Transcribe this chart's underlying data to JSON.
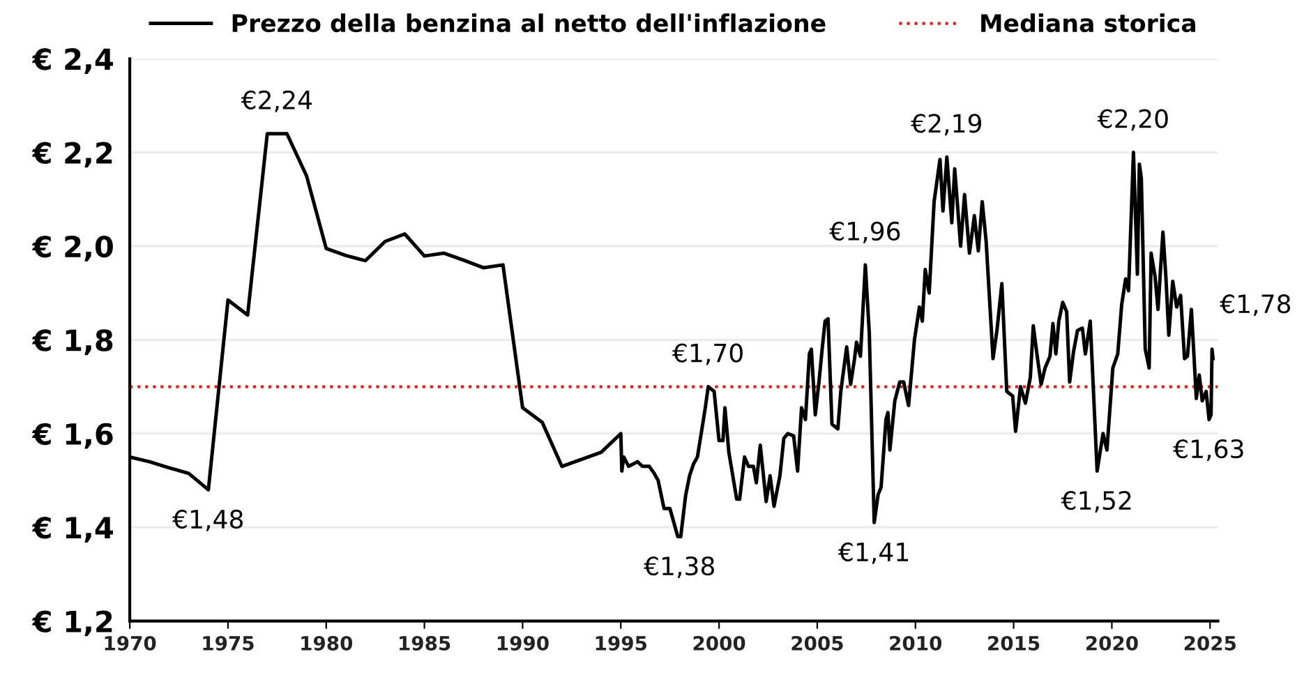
{
  "chart_data": {
    "type": "line",
    "x": [
      1970,
      1971,
      1972,
      1973,
      1974,
      1975,
      1976,
      1977,
      1978,
      1979,
      1980,
      1981,
      1982,
      1983,
      1984,
      1985,
      1986,
      1987,
      1988,
      1989,
      1990,
      1991,
      1992,
      1994,
      1995,
      1995.05,
      1995.15,
      1995.4,
      1995.85,
      1996.1,
      1996.45,
      1996.7,
      1996.9,
      1997.2,
      1997.5,
      1997.9,
      1998.05,
      1998.3,
      1998.5,
      1998.7,
      1998.9,
      1999.15,
      1999.3,
      1999.45,
      1999.75,
      2000.0,
      2000.2,
      2000.3,
      2000.5,
      2000.9,
      2001.05,
      2001.3,
      2001.5,
      2001.75,
      2001.9,
      2002.1,
      2002.4,
      2002.6,
      2002.8,
      2003.1,
      2003.3,
      2003.5,
      2003.8,
      2004.0,
      2004.2,
      2004.4,
      2004.6,
      2004.7,
      2004.9,
      2005.1,
      2005.25,
      2005.4,
      2005.55,
      2005.75,
      2006.05,
      2006.2,
      2006.5,
      2006.7,
      2006.9,
      2007.0,
      2007.2,
      2007.45,
      2007.65,
      2007.9,
      2008.1,
      2008.25,
      2008.5,
      2008.6,
      2008.7,
      2008.95,
      2009.2,
      2009.4,
      2009.65,
      2009.95,
      2010.2,
      2010.35,
      2010.5,
      2010.7,
      2010.95,
      2011.25,
      2011.4,
      2011.6,
      2011.85,
      2012.0,
      2012.3,
      2012.5,
      2012.75,
      2013.0,
      2013.2,
      2013.4,
      2013.6,
      2013.95,
      2014.15,
      2014.4,
      2014.65,
      2014.95,
      2015.1,
      2015.35,
      2015.6,
      2015.85,
      2016.0,
      2016.2,
      2016.4,
      2016.6,
      2016.85,
      2017.0,
      2017.15,
      2017.3,
      2017.5,
      2017.7,
      2017.85,
      2018.05,
      2018.25,
      2018.5,
      2018.65,
      2018.9,
      2019.25,
      2019.55,
      2019.75,
      2020.05,
      2020.3,
      2020.5,
      2020.7,
      2020.85,
      2021.1,
      2021.3,
      2021.4,
      2021.5,
      2021.7,
      2021.9,
      2022.0,
      2022.2,
      2022.35,
      2022.6,
      2022.75,
      2022.9,
      2023.1,
      2023.3,
      2023.5,
      2023.7,
      2023.85,
      2024.05,
      2024.3,
      2024.45,
      2024.6,
      2024.8,
      2024.95,
      2025.05,
      2025.1,
      2025.15
    ],
    "series": [
      {
        "name": "Prezzo della benzina al netto dell'inflazione",
        "color": "#000000",
        "values": [
          1.55,
          1.54,
          1.527,
          1.515,
          1.48,
          1.885,
          1.853,
          2.24,
          2.24,
          2.15,
          1.995,
          1.98,
          1.969,
          2.01,
          2.026,
          1.979,
          1.985,
          1.97,
          1.954,
          1.96,
          1.655,
          1.624,
          1.53,
          1.56,
          1.6,
          1.52,
          1.55,
          1.53,
          1.54,
          1.53,
          1.53,
          1.515,
          1.5,
          1.44,
          1.44,
          1.38,
          1.38,
          1.468,
          1.51,
          1.535,
          1.55,
          1.615,
          1.655,
          1.7,
          1.69,
          1.585,
          1.585,
          1.655,
          1.56,
          1.46,
          1.46,
          1.55,
          1.53,
          1.53,
          1.495,
          1.575,
          1.455,
          1.51,
          1.445,
          1.51,
          1.59,
          1.6,
          1.595,
          1.52,
          1.655,
          1.63,
          1.77,
          1.78,
          1.64,
          1.715,
          1.78,
          1.84,
          1.845,
          1.62,
          1.61,
          1.69,
          1.785,
          1.705,
          1.76,
          1.795,
          1.765,
          1.96,
          1.815,
          1.41,
          1.47,
          1.485,
          1.63,
          1.645,
          1.565,
          1.67,
          1.71,
          1.71,
          1.66,
          1.8,
          1.87,
          1.84,
          1.95,
          1.9,
          2.095,
          2.185,
          2.075,
          2.19,
          2.05,
          2.165,
          2.0,
          2.11,
          1.985,
          2.065,
          1.99,
          2.095,
          2.01,
          1.76,
          1.82,
          1.92,
          1.69,
          1.68,
          1.605,
          1.7,
          1.665,
          1.72,
          1.83,
          1.765,
          1.705,
          1.74,
          1.765,
          1.835,
          1.77,
          1.84,
          1.88,
          1.86,
          1.71,
          1.775,
          1.82,
          1.825,
          1.77,
          1.84,
          1.52,
          1.6,
          1.565,
          1.74,
          1.77,
          1.875,
          1.93,
          1.905,
          2.2,
          1.94,
          2.175,
          2.145,
          1.78,
          1.74,
          1.985,
          1.935,
          1.865,
          2.03,
          1.935,
          1.81,
          1.925,
          1.87,
          1.895,
          1.76,
          1.765,
          1.865,
          1.675,
          1.725,
          1.67,
          1.69,
          1.63,
          1.64,
          1.78,
          1.76
        ]
      }
    ],
    "ref_lines": [
      {
        "axis": "y",
        "value": 1.7,
        "label": "Mediana storica",
        "color": "#e0201b",
        "line_style": "dotted"
      }
    ],
    "annotations": [
      {
        "text": "€2,24",
        "x": 1977.5,
        "y": 2.24
      },
      {
        "text": "€1,48",
        "x": 1974,
        "y": 1.48
      },
      {
        "text": "€1,38",
        "x": 1998,
        "y": 1.38
      },
      {
        "text": "€1,70",
        "x": 1999.45,
        "y": 1.7
      },
      {
        "text": "€1,96",
        "x": 2007.45,
        "y": 1.96
      },
      {
        "text": "€1,41",
        "x": 2007.9,
        "y": 1.41
      },
      {
        "text": "€2,19",
        "x": 2011.6,
        "y": 2.19
      },
      {
        "text": "€1,52",
        "x": 2019.25,
        "y": 1.52
      },
      {
        "text": "€2,20",
        "x": 2021.1,
        "y": 2.2
      },
      {
        "text": "€1,63",
        "x": 2024.95,
        "y": 1.63
      },
      {
        "text": "€1,78",
        "x": 2025.1,
        "y": 1.78
      }
    ],
    "xlim": [
      1970,
      2025.4
    ],
    "xticks": [
      1970,
      1975,
      1980,
      1985,
      1990,
      1995,
      2000,
      2005,
      2010,
      2015,
      2020,
      2025
    ],
    "ylim": [
      1.2,
      2.4
    ],
    "yticks": [
      {
        "value": 1.2,
        "label": "€ 1,2"
      },
      {
        "value": 1.4,
        "label": "€ 1,4"
      },
      {
        "value": 1.6,
        "label": "€ 1,6"
      },
      {
        "value": 1.8,
        "label": "€ 1,8"
      },
      {
        "value": 2.0,
        "label": "€ 2,0"
      },
      {
        "value": 2.2,
        "label": "€ 2,2"
      },
      {
        "value": 2.4,
        "label": "€ 2,4"
      }
    ],
    "grid": "y",
    "legend": "top",
    "line_style": "solid",
    "marker": "none"
  }
}
